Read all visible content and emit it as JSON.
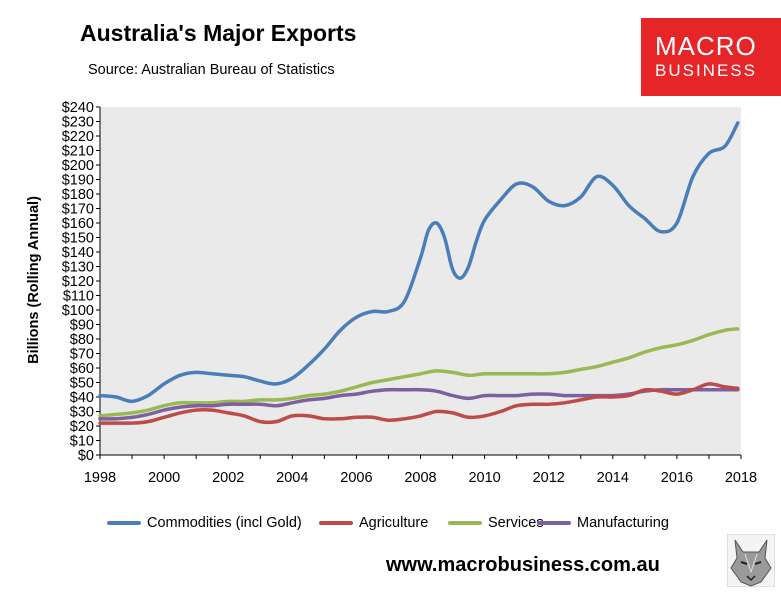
{
  "header": {
    "title": "Australia's Major Exports",
    "source": "Source:  Australian Bureau of Statistics"
  },
  "logo": {
    "line1": "MACRO",
    "line2": "BUSINESS",
    "color": "#e52528"
  },
  "footer": {
    "url": "www.macrobusiness.com.au",
    "mascot_icon": "wolf-icon"
  },
  "chart_data": {
    "type": "line",
    "title": "Australia's Major Exports",
    "subtitle": "Source:  Australian Bureau of Statistics",
    "xlabel": "",
    "ylabel": "Billions (Rolling Annual)",
    "xlim": [
      1998,
      2018
    ],
    "ylim": [
      0,
      240
    ],
    "x_ticks": [
      "1998",
      "2000",
      "2002",
      "2004",
      "2006",
      "2008",
      "2010",
      "2012",
      "2014",
      "2016",
      "2018"
    ],
    "y_ticks": [
      "$0",
      "$10",
      "$20",
      "$30",
      "$40",
      "$50",
      "$60",
      "$70",
      "$80",
      "$90",
      "$100",
      "$110",
      "$120",
      "$130",
      "$140",
      "$150",
      "$160",
      "$170",
      "$180",
      "$190",
      "$200",
      "$210",
      "$220",
      "$230",
      "$240"
    ],
    "grid": false,
    "plot_background": "#eaeaea",
    "legend_position": "bottom",
    "series": [
      {
        "name": "Commodities (incl Gold)",
        "color": "#4a7ebb",
        "x": [
          1998,
          1998.5,
          1999,
          1999.5,
          2000,
          2000.5,
          2001,
          2001.5,
          2002,
          2002.5,
          2003,
          2003.5,
          2004,
          2004.5,
          2005,
          2005.5,
          2006,
          2006.5,
          2007,
          2007.5,
          2008,
          2008.25,
          2008.5,
          2008.75,
          2009,
          2009.25,
          2009.5,
          2009.75,
          2010,
          2010.5,
          2011,
          2011.5,
          2012,
          2012.5,
          2013,
          2013.5,
          2014,
          2014.5,
          2015,
          2015.5,
          2016,
          2016.5,
          2017,
          2017.5,
          2017.9
        ],
        "values": [
          41,
          40,
          37,
          41,
          49,
          55,
          57,
          56,
          55,
          54,
          51,
          49,
          53,
          62,
          73,
          86,
          95,
          99,
          99,
          106,
          136,
          155,
          160,
          150,
          128,
          122,
          130,
          148,
          162,
          176,
          187,
          185,
          175,
          172,
          178,
          192,
          186,
          172,
          163,
          154,
          160,
          192,
          208,
          213,
          229
        ]
      },
      {
        "name": "Agriculture",
        "color": "#be4b48",
        "x": [
          1998,
          1998.5,
          1999,
          1999.5,
          2000,
          2000.5,
          2001,
          2001.5,
          2002,
          2002.5,
          2003,
          2003.5,
          2004,
          2004.5,
          2005,
          2005.5,
          2006,
          2006.5,
          2007,
          2007.5,
          2008,
          2008.5,
          2009,
          2009.5,
          2010,
          2010.5,
          2011,
          2011.5,
          2012,
          2012.5,
          2013,
          2013.5,
          2014,
          2014.5,
          2015,
          2015.5,
          2016,
          2016.5,
          2017,
          2017.5,
          2017.9
        ],
        "values": [
          22,
          22,
          22,
          23,
          26,
          29,
          31,
          31,
          29,
          27,
          23,
          23,
          27,
          27,
          25,
          25,
          26,
          26,
          24,
          25,
          27,
          30,
          29,
          26,
          27,
          30,
          34,
          35,
          35,
          36,
          38,
          40,
          40,
          41,
          45,
          44,
          42,
          45,
          49,
          47,
          46
        ]
      },
      {
        "name": "Services",
        "color": "#98b954",
        "x": [
          1998,
          1998.5,
          1999,
          1999.5,
          2000,
          2000.5,
          2001,
          2001.5,
          2002,
          2002.5,
          2003,
          2003.5,
          2004,
          2004.5,
          2005,
          2005.5,
          2006,
          2006.5,
          2007,
          2007.5,
          2008,
          2008.5,
          2009,
          2009.5,
          2010,
          2010.5,
          2011,
          2011.5,
          2012,
          2012.5,
          2013,
          2013.5,
          2014,
          2014.5,
          2015,
          2015.5,
          2016,
          2016.5,
          2017,
          2017.5,
          2017.9
        ],
        "values": [
          27,
          28,
          29,
          31,
          34,
          36,
          36,
          36,
          37,
          37,
          38,
          38,
          39,
          41,
          42,
          44,
          47,
          50,
          52,
          54,
          56,
          58,
          57,
          55,
          56,
          56,
          56,
          56,
          56,
          57,
          59,
          61,
          64,
          67,
          71,
          74,
          76,
          79,
          83,
          86,
          87
        ]
      },
      {
        "name": "Manufacturing",
        "color": "#7d60a0",
        "x": [
          1998,
          1998.5,
          1999,
          1999.5,
          2000,
          2000.5,
          2001,
          2001.5,
          2002,
          2002.5,
          2003,
          2003.5,
          2004,
          2004.5,
          2005,
          2005.5,
          2006,
          2006.5,
          2007,
          2007.5,
          2008,
          2008.5,
          2009,
          2009.5,
          2010,
          2010.5,
          2011,
          2011.5,
          2012,
          2012.5,
          2013,
          2013.5,
          2014,
          2014.5,
          2015,
          2015.5,
          2016,
          2016.5,
          2017,
          2017.5,
          2017.9
        ],
        "values": [
          25,
          25,
          26,
          28,
          31,
          33,
          34,
          34,
          35,
          35,
          35,
          34,
          36,
          38,
          39,
          41,
          42,
          44,
          45,
          45,
          45,
          44,
          41,
          39,
          41,
          41,
          41,
          42,
          42,
          41,
          41,
          41,
          41,
          42,
          44,
          45,
          45,
          45,
          45,
          45,
          45
        ]
      }
    ]
  }
}
